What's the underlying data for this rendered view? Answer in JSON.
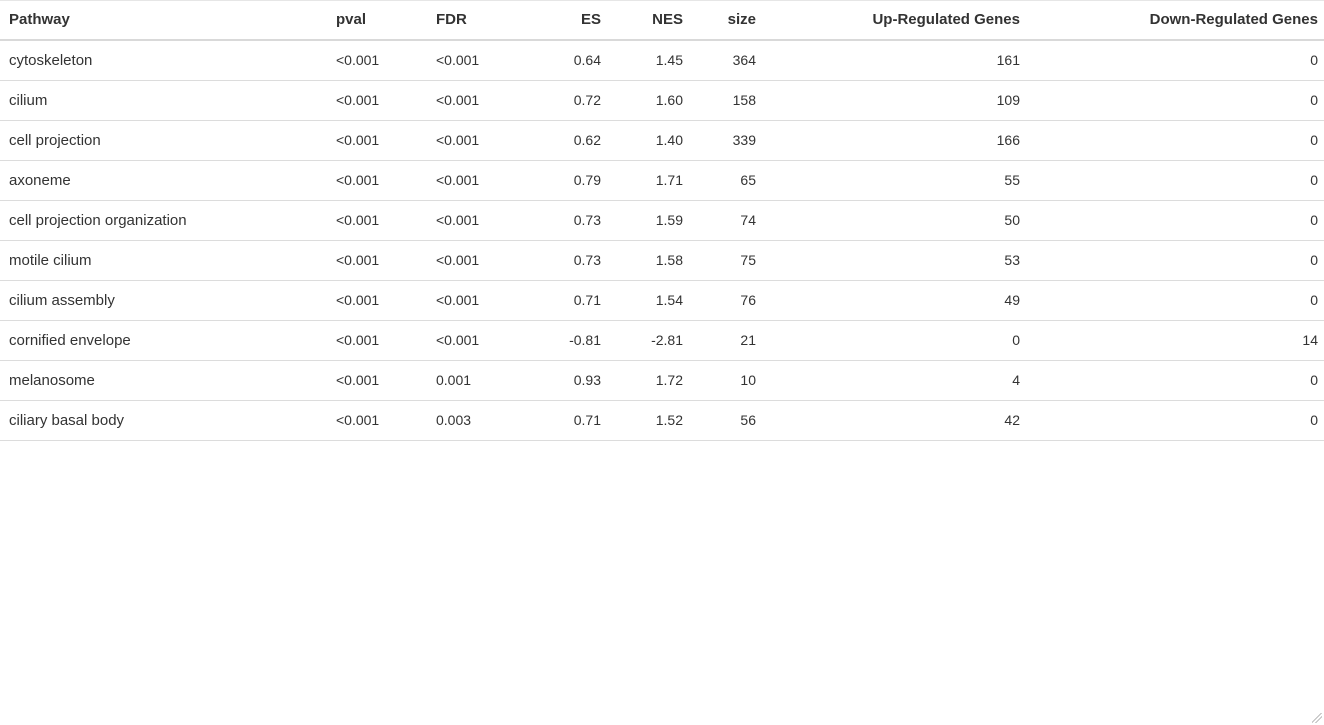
{
  "table": {
    "columns": {
      "pathway": "Pathway",
      "pval": "pval",
      "fdr": "FDR",
      "es": "ES",
      "nes": "NES",
      "size": "size",
      "up": "Up-Regulated Genes",
      "down": "Down-Regulated Genes"
    },
    "rows": [
      {
        "pathway": "cytoskeleton",
        "pval": "<0.001",
        "fdr": "<0.001",
        "es": "0.64",
        "nes": "1.45",
        "size": "364",
        "up": "161",
        "down": "0"
      },
      {
        "pathway": "cilium",
        "pval": "<0.001",
        "fdr": "<0.001",
        "es": "0.72",
        "nes": "1.60",
        "size": "158",
        "up": "109",
        "down": "0"
      },
      {
        "pathway": "cell projection",
        "pval": "<0.001",
        "fdr": "<0.001",
        "es": "0.62",
        "nes": "1.40",
        "size": "339",
        "up": "166",
        "down": "0"
      },
      {
        "pathway": "axoneme",
        "pval": "<0.001",
        "fdr": "<0.001",
        "es": "0.79",
        "nes": "1.71",
        "size": "65",
        "up": "55",
        "down": "0"
      },
      {
        "pathway": "cell projection organization",
        "pval": "<0.001",
        "fdr": "<0.001",
        "es": "0.73",
        "nes": "1.59",
        "size": "74",
        "up": "50",
        "down": "0"
      },
      {
        "pathway": "motile cilium",
        "pval": "<0.001",
        "fdr": "<0.001",
        "es": "0.73",
        "nes": "1.58",
        "size": "75",
        "up": "53",
        "down": "0"
      },
      {
        "pathway": "cilium assembly",
        "pval": "<0.001",
        "fdr": "<0.001",
        "es": "0.71",
        "nes": "1.54",
        "size": "76",
        "up": "49",
        "down": "0"
      },
      {
        "pathway": "cornified envelope",
        "pval": "<0.001",
        "fdr": "<0.001",
        "es": "-0.81",
        "nes": "-2.81",
        "size": "21",
        "up": "0",
        "down": "14"
      },
      {
        "pathway": "melanosome",
        "pval": "<0.001",
        "fdr": "0.001",
        "es": "0.93",
        "nes": "1.72",
        "size": "10",
        "up": "4",
        "down": "0"
      },
      {
        "pathway": "ciliary basal body",
        "pval": "<0.001",
        "fdr": "0.003",
        "es": "0.71",
        "nes": "1.52",
        "size": "56",
        "up": "42",
        "down": "0"
      }
    ]
  }
}
